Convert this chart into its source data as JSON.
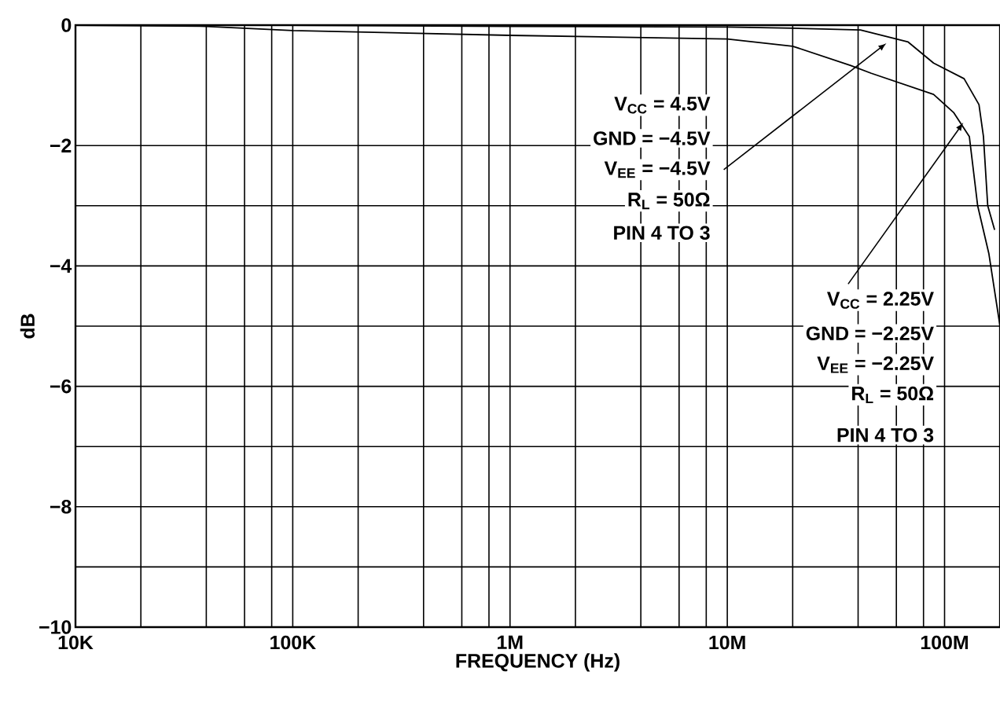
{
  "chart_data": {
    "type": "line",
    "xlabel": "FREQUENCY (Hz)",
    "ylabel": "dB",
    "log": "x",
    "grid": true,
    "marker": "none",
    "line_style": "solid",
    "xlim": [
      10000,
      180000000
    ],
    "ylim": [
      -10,
      0
    ],
    "xticks": [
      {
        "value": 10000,
        "label": "10K"
      },
      {
        "value": 20000,
        "label": null
      },
      {
        "value": 40000,
        "label": null
      },
      {
        "value": 60000,
        "label": null
      },
      {
        "value": 80000,
        "label": null
      },
      {
        "value": 100000,
        "label": "100K"
      },
      {
        "value": 200000,
        "label": null
      },
      {
        "value": 400000,
        "label": null
      },
      {
        "value": 600000,
        "label": null
      },
      {
        "value": 800000,
        "label": null
      },
      {
        "value": 1000000,
        "label": "1M"
      },
      {
        "value": 2000000,
        "label": null
      },
      {
        "value": 4000000,
        "label": null
      },
      {
        "value": 6000000,
        "label": null
      },
      {
        "value": 8000000,
        "label": null
      },
      {
        "value": 10000000,
        "label": "10M"
      },
      {
        "value": 20000000,
        "label": null
      },
      {
        "value": 40000000,
        "label": null
      },
      {
        "value": 60000000,
        "label": null
      },
      {
        "value": 80000000,
        "label": null
      },
      {
        "value": 100000000,
        "label": "100M"
      }
    ],
    "yticks": [
      {
        "value": 0,
        "label": "0"
      },
      {
        "value": -2,
        "label": "−2"
      },
      {
        "value": -3,
        "label": null
      },
      {
        "value": -4,
        "label": "−4"
      },
      {
        "value": -5,
        "label": null
      },
      {
        "value": -6,
        "label": "−6"
      },
      {
        "value": -7,
        "label": null
      },
      {
        "value": -8,
        "label": "−8"
      },
      {
        "value": -9,
        "label": null
      },
      {
        "value": -10,
        "label": "−10"
      }
    ],
    "series": [
      {
        "color": "#000000",
        "x": [
          10000,
          100000,
          1000000,
          10000000,
          20000000,
          41000000,
          68000000,
          89000000,
          123000000,
          144000000,
          151000000,
          158000000,
          170000000
        ],
        "values": [
          0,
          0,
          -0.02,
          -0.03,
          -0.05,
          -0.08,
          -0.28,
          -0.63,
          -0.89,
          -1.32,
          -1.85,
          -3.0,
          -3.4
        ]
      },
      {
        "color": "#000000",
        "x": [
          10000,
          40000,
          100000,
          1000000,
          10000000,
          20000000,
          37000000,
          46000000,
          89000000,
          110000000,
          130000000,
          142000000,
          160000000,
          180000000
        ],
        "values": [
          0,
          -0.02,
          -0.09,
          -0.17,
          -0.23,
          -0.35,
          -0.67,
          -0.8,
          -1.15,
          -1.45,
          -1.85,
          -3.0,
          -3.8,
          -5.0
        ]
      }
    ],
    "annotations": [
      "V$_{CC}$ = 4.5V",
      "GND = −4.5V",
      {
        "text": "V$_{EE}$ = −4.5V",
        "x": 54000000,
        "y": -0.3
      },
      "R$_{L}$ = 50Ω",
      "PIN 4 TO 3",
      {
        "text": "V$_{CC}$ = 2.25V",
        "x": 122000000,
        "y": -1.62
      },
      "GND = −2.25V",
      "V$_{EE}$ = −2.25V",
      "R$_{L}$ = 50Ω",
      "PIN 4 TO 3"
    ]
  }
}
